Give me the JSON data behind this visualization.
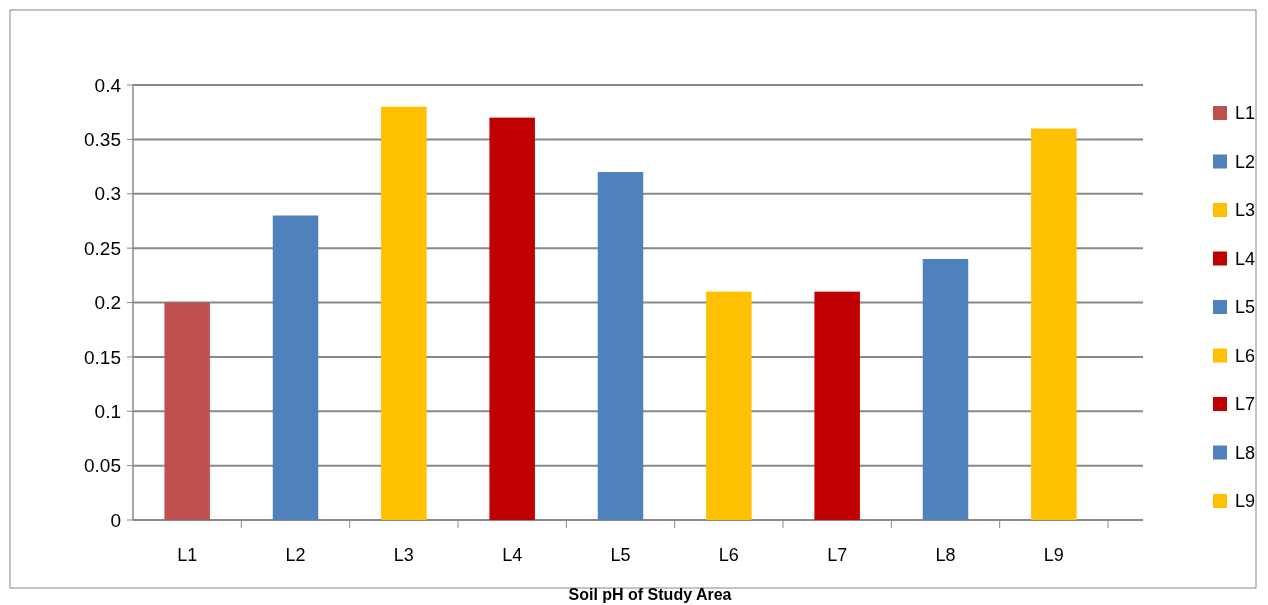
{
  "chart_data": {
    "type": "bar",
    "title": "Soil pH of Study Area",
    "categories": [
      "L1",
      "L2",
      "L3",
      "L4",
      "L5",
      "L6",
      "L7",
      "L8",
      "L9"
    ],
    "series": [
      {
        "name": "L1",
        "color": "#c0504d",
        "values": [
          0.2,
          null,
          null,
          null,
          null,
          null,
          null,
          null,
          null
        ]
      },
      {
        "name": "L2",
        "color": "#4f81bd",
        "values": [
          null,
          0.28,
          null,
          null,
          null,
          null,
          null,
          null,
          null
        ]
      },
      {
        "name": "L3",
        "color": "#ffc000",
        "values": [
          null,
          null,
          0.38,
          null,
          null,
          null,
          null,
          null,
          null
        ]
      },
      {
        "name": "L4",
        "color": "#c00000",
        "values": [
          null,
          null,
          null,
          0.37,
          null,
          null,
          null,
          null,
          null
        ]
      },
      {
        "name": "L5",
        "color": "#4f81bd",
        "values": [
          null,
          null,
          null,
          null,
          0.32,
          null,
          null,
          null,
          null
        ]
      },
      {
        "name": "L6",
        "color": "#ffc000",
        "values": [
          null,
          null,
          null,
          null,
          null,
          0.21,
          null,
          null,
          null
        ]
      },
      {
        "name": "L7",
        "color": "#c00000",
        "values": [
          null,
          null,
          null,
          null,
          null,
          null,
          0.21,
          null,
          null
        ]
      },
      {
        "name": "L8",
        "color": "#4f81bd",
        "values": [
          null,
          null,
          null,
          null,
          null,
          null,
          null,
          0.24,
          null
        ]
      },
      {
        "name": "L9",
        "color": "#ffc000",
        "values": [
          null,
          null,
          null,
          null,
          null,
          null,
          null,
          null,
          0.36
        ]
      }
    ],
    "ylim": [
      0,
      0.4
    ],
    "yticks": [
      0,
      0.05,
      0.1,
      0.15,
      0.2,
      0.25,
      0.3,
      0.35,
      0.4
    ],
    "grid": true,
    "legend": "right"
  }
}
